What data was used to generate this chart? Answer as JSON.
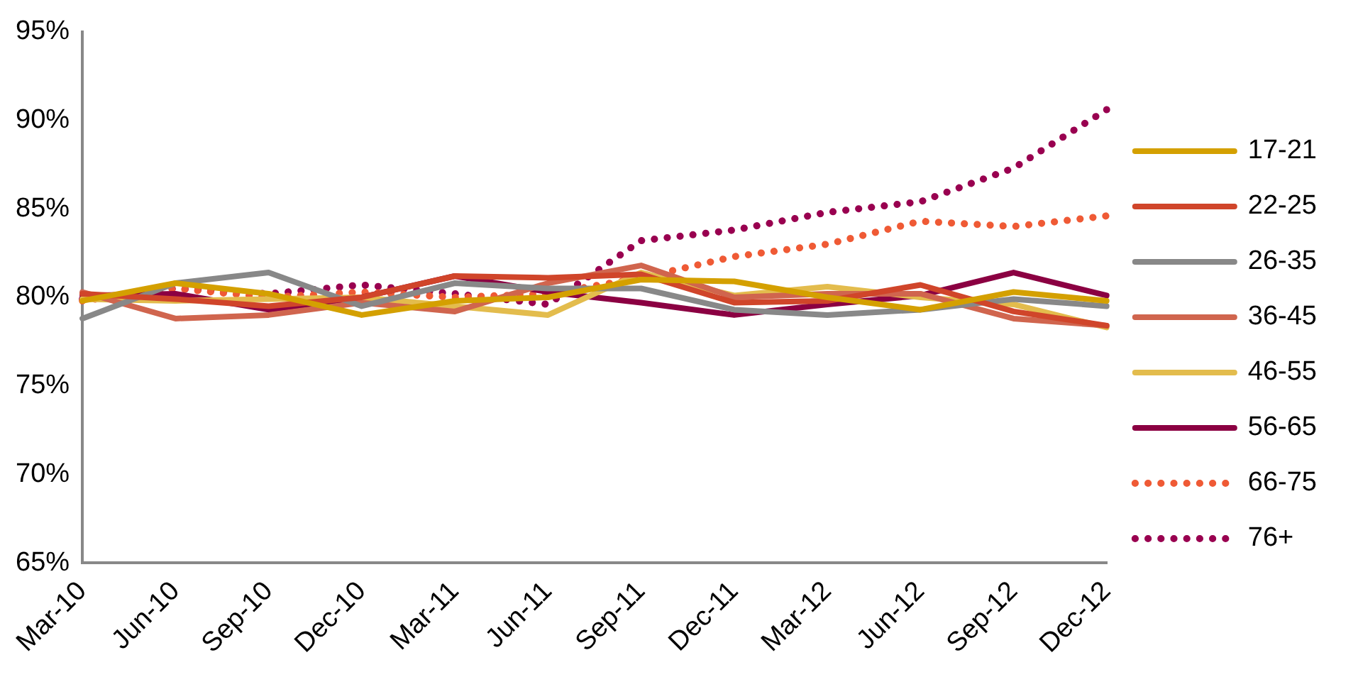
{
  "chart_data": {
    "type": "line",
    "categories": [
      "Mar-10",
      "Jun-10",
      "Sep-10",
      "Dec-10",
      "Mar-11",
      "Jun-11",
      "Sep-11",
      "Dec-11",
      "Mar-12",
      "Jun-12",
      "Sep-12",
      "Dec-12"
    ],
    "ylim": [
      65,
      95
    ],
    "yticks": [
      {
        "value": 65,
        "label": "65%"
      },
      {
        "value": 70,
        "label": "70%"
      },
      {
        "value": 75,
        "label": "75%"
      },
      {
        "value": 80,
        "label": "80%"
      },
      {
        "value": 85,
        "label": "85%"
      },
      {
        "value": 90,
        "label": "90%"
      },
      {
        "value": 95,
        "label": "95%"
      }
    ],
    "grid": false,
    "legend": "right",
    "marker": "none",
    "series": [
      {
        "name": "17-21",
        "color": "#d4a000",
        "line_style": "solid",
        "values": [
          79.8,
          80.8,
          80.2,
          79.0,
          79.8,
          80.0,
          81.0,
          80.9,
          80.0,
          79.3,
          80.3,
          79.8
        ]
      },
      {
        "name": "22-25",
        "color": "#d0452a",
        "line_style": "solid",
        "values": [
          80.2,
          79.9,
          79.5,
          80.0,
          81.2,
          81.1,
          81.3,
          79.7,
          79.8,
          80.7,
          79.2,
          78.4
        ]
      },
      {
        "name": "26-35",
        "color": "#888888",
        "line_style": "solid",
        "values": [
          78.8,
          80.8,
          81.4,
          79.5,
          80.8,
          80.5,
          80.5,
          79.3,
          79.0,
          79.3,
          79.9,
          79.5
        ]
      },
      {
        "name": "36-45",
        "color": "#d0654e",
        "line_style": "solid",
        "values": [
          80.3,
          78.8,
          79.0,
          79.7,
          79.2,
          80.8,
          81.8,
          80.0,
          80.2,
          80.2,
          78.8,
          78.4
        ]
      },
      {
        "name": "46-55",
        "color": "#e3bc4d",
        "line_style": "solid",
        "values": [
          79.9,
          79.8,
          79.9,
          80.0,
          79.5,
          79.0,
          81.4,
          80.1,
          80.6,
          80.0,
          79.6,
          78.3
        ]
      },
      {
        "name": "56-65",
        "color": "#8b0042",
        "line_style": "solid",
        "values": [
          80.1,
          80.2,
          79.3,
          80.0,
          81.2,
          80.3,
          79.7,
          79.0,
          79.6,
          80.1,
          81.4,
          80.1
        ]
      },
      {
        "name": "66-75",
        "color": "#ef5a35",
        "line_style": "dotted",
        "values": [
          79.8,
          80.5,
          80.0,
          80.3,
          80.0,
          80.2,
          81.1,
          82.3,
          83.0,
          84.3,
          84.0,
          84.6
        ]
      },
      {
        "name": "76+",
        "color": "#990050",
        "line_style": "dotted",
        "values": [
          79.9,
          80.5,
          80.2,
          80.7,
          80.2,
          79.6,
          83.2,
          83.8,
          84.8,
          85.4,
          87.3,
          90.6
        ]
      }
    ]
  }
}
